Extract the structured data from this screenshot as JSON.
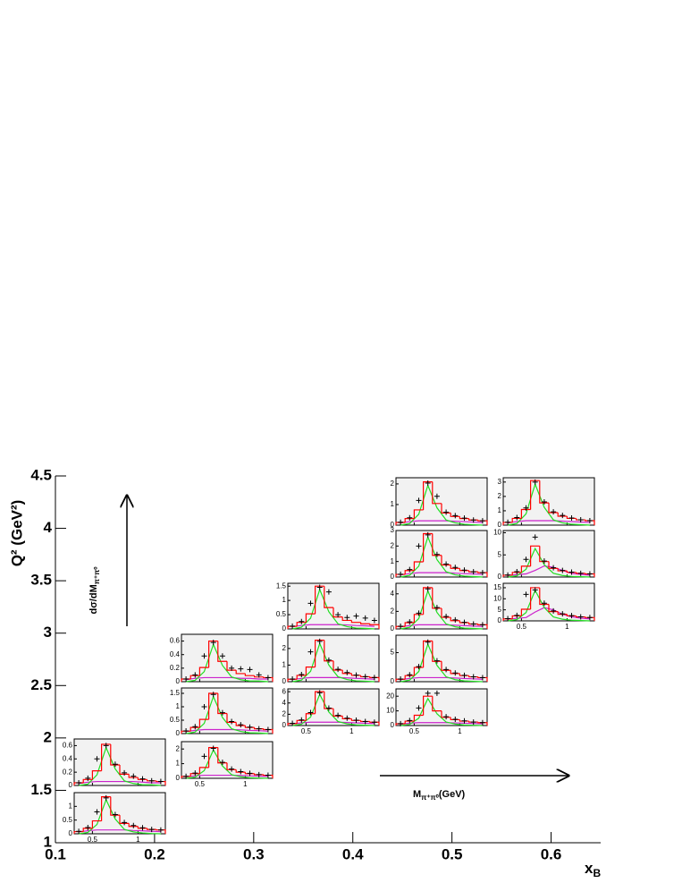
{
  "chart_data": {
    "type": "panel-grid",
    "xlabel": {
      "text": "x",
      "sub": "B"
    },
    "ylabel": "Q² (GeV²)",
    "xlim": [
      0.1,
      0.65
    ],
    "xticks": [
      0.1,
      0.2,
      0.3,
      0.4,
      0.5,
      0.6
    ],
    "ylim": [
      1,
      4.5
    ],
    "yticks": [
      1,
      1.5,
      2,
      2.5,
      3,
      3.5,
      4,
      4.5
    ],
    "y_annotation": {
      "text": "dσ/dM",
      "sub": "π⁺π⁰"
    },
    "x_annotation": {
      "text": "M",
      "sub": "π⁺π⁰",
      "after": "(GeV)"
    },
    "colors": {
      "fit": "#ff0000",
      "signal": "#22dd22",
      "background": "#cc22cc",
      "data": "#000000",
      "panel": "#f2f2f2"
    },
    "inset_xlim": [
      0.3,
      1.3
    ],
    "inset_xticks": [
      0.5,
      1
    ],
    "bins": [
      0.3,
      0.4,
      0.5,
      0.6,
      0.7,
      0.8,
      0.9,
      1.0,
      1.1,
      1.2,
      1.3
    ],
    "panels": [
      {
        "ylim": [
          0,
          0.7
        ],
        "yticks": [
          0,
          0.2,
          0.4,
          0.6
        ],
        "show_xticks": false,
        "fit": [
          0.04,
          0.09,
          0.22,
          0.62,
          0.31,
          0.17,
          0.12,
          0.09,
          0.07,
          0.06
        ],
        "signal": [
          0,
          0.02,
          0.16,
          0.57,
          0.25,
          0.07,
          0.03,
          0.01,
          0.01,
          0
        ],
        "background": [
          0.03,
          0.05,
          0.06,
          0.06,
          0.06,
          0.06,
          0.06,
          0.05,
          0.04,
          0.04
        ],
        "data": [
          0.04,
          0.11,
          0.4,
          0.6,
          0.32,
          0.19,
          0.14,
          0.1,
          0.07,
          0.06
        ]
      },
      {
        "ylim": [
          0,
          1.5
        ],
        "yticks": [
          0,
          0.5,
          1
        ],
        "show_xticks": true,
        "fit": [
          0.08,
          0.2,
          0.47,
          1.35,
          0.68,
          0.38,
          0.27,
          0.2,
          0.16,
          0.14
        ],
        "signal": [
          0,
          0.05,
          0.34,
          1.24,
          0.54,
          0.16,
          0.07,
          0.03,
          0.01,
          0
        ],
        "background": [
          0.07,
          0.11,
          0.14,
          0.14,
          0.14,
          0.14,
          0.12,
          0.11,
          0.09,
          0.08
        ],
        "data": [
          0.09,
          0.23,
          0.8,
          1.31,
          0.7,
          0.41,
          0.3,
          0.22,
          0.16,
          0.14
        ]
      },
      {
        "ylim": [
          0,
          0.7
        ],
        "yticks": [
          0,
          0.2,
          0.4,
          0.6
        ],
        "show_xticks": false,
        "fit": [
          0.04,
          0.09,
          0.21,
          0.6,
          0.3,
          0.17,
          0.12,
          0.09,
          0.07,
          0.06
        ],
        "signal": [
          0,
          0.02,
          0.15,
          0.55,
          0.24,
          0.07,
          0.03,
          0.01,
          0.01,
          0
        ],
        "background": [
          0.03,
          0.05,
          0.06,
          0.06,
          0.06,
          0.06,
          0.05,
          0.05,
          0.04,
          0.04
        ],
        "data": [
          0.04,
          0.1,
          0.38,
          0.58,
          0.38,
          0.2,
          0.19,
          0.18,
          0.1,
          0.06
        ]
      },
      {
        "ylim": [
          0,
          1.7
        ],
        "yticks": [
          0,
          0.5,
          1,
          1.5
        ],
        "show_xticks": false,
        "fit": [
          0.09,
          0.23,
          0.53,
          1.5,
          0.75,
          0.42,
          0.3,
          0.23,
          0.18,
          0.15
        ],
        "signal": [
          0,
          0.06,
          0.38,
          1.38,
          0.6,
          0.18,
          0.08,
          0.03,
          0.02,
          0
        ],
        "background": [
          0.08,
          0.12,
          0.15,
          0.15,
          0.15,
          0.15,
          0.14,
          0.12,
          0.11,
          0.09
        ],
        "data": [
          0.1,
          0.26,
          1.0,
          1.46,
          0.78,
          0.45,
          0.33,
          0.24,
          0.18,
          0.15
        ]
      },
      {
        "ylim": [
          0,
          2.5
        ],
        "yticks": [
          0,
          1,
          2
        ],
        "show_xticks": true,
        "fit": [
          0.13,
          0.32,
          0.74,
          2.1,
          1.05,
          0.59,
          0.42,
          0.32,
          0.25,
          0.21
        ],
        "signal": [
          0,
          0.08,
          0.53,
          1.93,
          0.84,
          0.25,
          0.11,
          0.04,
          0.02,
          0
        ],
        "background": [
          0.11,
          0.17,
          0.21,
          0.21,
          0.21,
          0.21,
          0.19,
          0.17,
          0.15,
          0.13
        ],
        "data": [
          0.14,
          0.36,
          1.5,
          2.04,
          1.09,
          0.63,
          0.46,
          0.34,
          0.25,
          0.21
        ]
      },
      {
        "ylim": [
          0,
          1.6
        ],
        "yticks": [
          0,
          0.5,
          1,
          1.5
        ],
        "show_xticks": false,
        "fit": [
          0.09,
          0.23,
          0.53,
          1.5,
          0.75,
          0.42,
          0.3,
          0.23,
          0.18,
          0.15
        ],
        "signal": [
          0,
          0.06,
          0.38,
          1.38,
          0.6,
          0.18,
          0.08,
          0.03,
          0.02,
          0
        ],
        "background": [
          0.08,
          0.12,
          0.15,
          0.15,
          0.15,
          0.15,
          0.14,
          0.12,
          0.11,
          0.09
        ],
        "data": [
          0.1,
          0.26,
          0.9,
          1.46,
          1.3,
          0.5,
          0.4,
          0.45,
          0.38,
          0.3
        ]
      },
      {
        "ylim": [
          0,
          2.8
        ],
        "yticks": [
          0,
          1,
          2
        ],
        "show_xticks": false,
        "fit": [
          0.15,
          0.38,
          0.88,
          2.5,
          1.25,
          0.7,
          0.5,
          0.38,
          0.3,
          0.25
        ],
        "signal": [
          0,
          0.1,
          0.63,
          2.3,
          1,
          0.3,
          0.13,
          0.05,
          0.03,
          0
        ],
        "background": [
          0.13,
          0.2,
          0.25,
          0.25,
          0.25,
          0.25,
          0.23,
          0.2,
          0.18,
          0.15
        ],
        "data": [
          0.16,
          0.43,
          1.8,
          2.43,
          1.3,
          0.75,
          0.55,
          0.4,
          0.3,
          0.25
        ]
      },
      {
        "ylim": [
          0,
          6.5
        ],
        "yticks": [
          0,
          2,
          4,
          6
        ],
        "show_xticks": true,
        "fit": [
          0.36,
          0.9,
          2.1,
          6,
          3,
          1.68,
          1.2,
          0.9,
          0.72,
          0.6
        ],
        "signal": [
          0,
          0.24,
          1.5,
          5.52,
          2.4,
          0.72,
          0.3,
          0.12,
          0.06,
          0
        ],
        "background": [
          0.3,
          0.48,
          0.6,
          0.6,
          0.6,
          0.6,
          0.54,
          0.48,
          0.42,
          0.36
        ],
        "data": [
          0.4,
          1,
          2.3,
          5.8,
          3.1,
          1.8,
          1.3,
          0.96,
          0.72,
          0.6
        ]
      },
      {
        "ylim": [
          0,
          2.3
        ],
        "yticks": [
          0,
          1,
          2
        ],
        "show_xticks": false,
        "fit": [
          0.13,
          0.32,
          0.74,
          2.1,
          1.05,
          0.59,
          0.42,
          0.32,
          0.25,
          0.21
        ],
        "signal": [
          0,
          0.08,
          0.53,
          1.93,
          0.84,
          0.25,
          0.11,
          0.04,
          0.02,
          0
        ],
        "background": [
          0.11,
          0.17,
          0.21,
          0.21,
          0.21,
          0.21,
          0.19,
          0.17,
          0.15,
          0.13
        ],
        "data": [
          0.14,
          0.36,
          1.2,
          2.04,
          1.4,
          0.63,
          0.46,
          0.34,
          0.25,
          0.21
        ]
      },
      {
        "ylim": [
          0,
          3
        ],
        "yticks": [
          0,
          1,
          2,
          3
        ],
        "show_xticks": false,
        "fit": [
          0.17,
          0.42,
          0.98,
          2.8,
          1.4,
          0.78,
          0.56,
          0.42,
          0.34,
          0.28
        ],
        "signal": [
          0,
          0.11,
          0.7,
          2.58,
          1.12,
          0.34,
          0.14,
          0.06,
          0.03,
          0
        ],
        "background": [
          0.14,
          0.22,
          0.28,
          0.28,
          0.28,
          0.28,
          0.25,
          0.22,
          0.2,
          0.17
        ],
        "data": [
          0.18,
          0.48,
          2,
          2.72,
          1.46,
          0.84,
          0.62,
          0.45,
          0.34,
          0.28
        ]
      },
      {
        "ylim": [
          0,
          5.2
        ],
        "yticks": [
          0,
          2,
          4
        ],
        "show_xticks": false,
        "fit": [
          0.28,
          0.71,
          1.65,
          4.7,
          2.35,
          1.32,
          0.94,
          0.71,
          0.56,
          0.47
        ],
        "signal": [
          0,
          0.19,
          1.18,
          4.32,
          1.88,
          0.56,
          0.24,
          0.09,
          0.05,
          0
        ],
        "background": [
          0.24,
          0.38,
          0.47,
          0.47,
          0.47,
          0.47,
          0.42,
          0.38,
          0.33,
          0.28
        ],
        "data": [
          0.31,
          0.8,
          1.8,
          4.56,
          2.44,
          1.41,
          1.03,
          0.75,
          0.56,
          0.47
        ]
      },
      {
        "ylim": [
          0,
          8
        ],
        "yticks": [
          0,
          5
        ],
        "show_xticks": false,
        "fit": [
          0.42,
          1.05,
          2.45,
          7,
          3.5,
          1.96,
          1.4,
          1.05,
          0.84,
          0.7
        ],
        "signal": [
          0,
          0.28,
          1.75,
          6.44,
          2.8,
          0.84,
          0.35,
          0.14,
          0.07,
          0
        ],
        "background": [
          0.35,
          0.56,
          0.7,
          0.7,
          0.7,
          0.7,
          0.63,
          0.56,
          0.49,
          0.42
        ],
        "data": [
          0.46,
          1.2,
          2.6,
          6.8,
          3.6,
          2.1,
          1.5,
          1.1,
          0.84,
          0.7
        ]
      },
      {
        "ylim": [
          0,
          25
        ],
        "yticks": [
          0,
          10,
          20
        ],
        "show_xticks": true,
        "fit": [
          1.2,
          3,
          7,
          20,
          10,
          5.6,
          4,
          3,
          2.4,
          2
        ],
        "signal": [
          0,
          0.8,
          5,
          18.4,
          8,
          2.4,
          1,
          0.4,
          0.2,
          0
        ],
        "background": [
          1,
          1.6,
          2,
          2,
          2,
          2,
          1.8,
          1.6,
          1.4,
          1.2
        ],
        "data": [
          1.3,
          3.4,
          12,
          22,
          22,
          6,
          4.3,
          3.2,
          2.4,
          2
        ]
      },
      {
        "ylim": [
          0,
          3.3
        ],
        "yticks": [
          0,
          1,
          2,
          3
        ],
        "show_xticks": false,
        "fit": [
          0.19,
          0.47,
          1.09,
          3.1,
          1.55,
          0.87,
          0.62,
          0.47,
          0.37,
          0.31
        ],
        "signal": [
          0,
          0.12,
          0.78,
          2.85,
          1.24,
          0.37,
          0.16,
          0.06,
          0.03,
          0
        ],
        "background": [
          0.16,
          0.25,
          0.31,
          0.31,
          0.31,
          0.31,
          0.28,
          0.25,
          0.22,
          0.19
        ],
        "data": [
          0.2,
          0.53,
          1.2,
          3,
          1.62,
          0.93,
          0.68,
          0.5,
          0.37,
          0.31
        ]
      },
      {
        "ylim": [
          0,
          10.5
        ],
        "yticks": [
          0,
          5,
          10
        ],
        "show_xticks": false,
        "fit": [
          0.42,
          1.05,
          2.45,
          7,
          3.5,
          1.96,
          1.4,
          1.05,
          0.84,
          0.7
        ],
        "signal": [
          0,
          0.28,
          1.75,
          6.44,
          2.8,
          0.84,
          0.35,
          0.14,
          0.07,
          0
        ],
        "background": [
          0.35,
          0.56,
          0.7,
          1.5,
          2.5,
          2.2,
          1.5,
          0.8,
          0.6,
          0.4
        ],
        "data": [
          0.46,
          1.2,
          4,
          9,
          3.6,
          2.1,
          1.5,
          1.1,
          0.84,
          0.7
        ]
      },
      {
        "ylim": [
          0,
          17
        ],
        "yticks": [
          0,
          5,
          10,
          15
        ],
        "show_xticks": true,
        "fit": [
          0.9,
          2.25,
          5.25,
          15,
          7.5,
          4.2,
          3,
          2.25,
          1.8,
          1.5
        ],
        "signal": [
          0,
          0.6,
          3.75,
          13.8,
          6,
          1.8,
          0.75,
          0.3,
          0.15,
          0
        ],
        "background": [
          0.75,
          1.2,
          1.5,
          4,
          6,
          5,
          3,
          1.8,
          1.2,
          0.9
        ],
        "data": [
          1,
          2.5,
          12,
          14,
          8,
          4.5,
          3.2,
          2.4,
          1.8,
          1.5
        ]
      }
    ]
  }
}
